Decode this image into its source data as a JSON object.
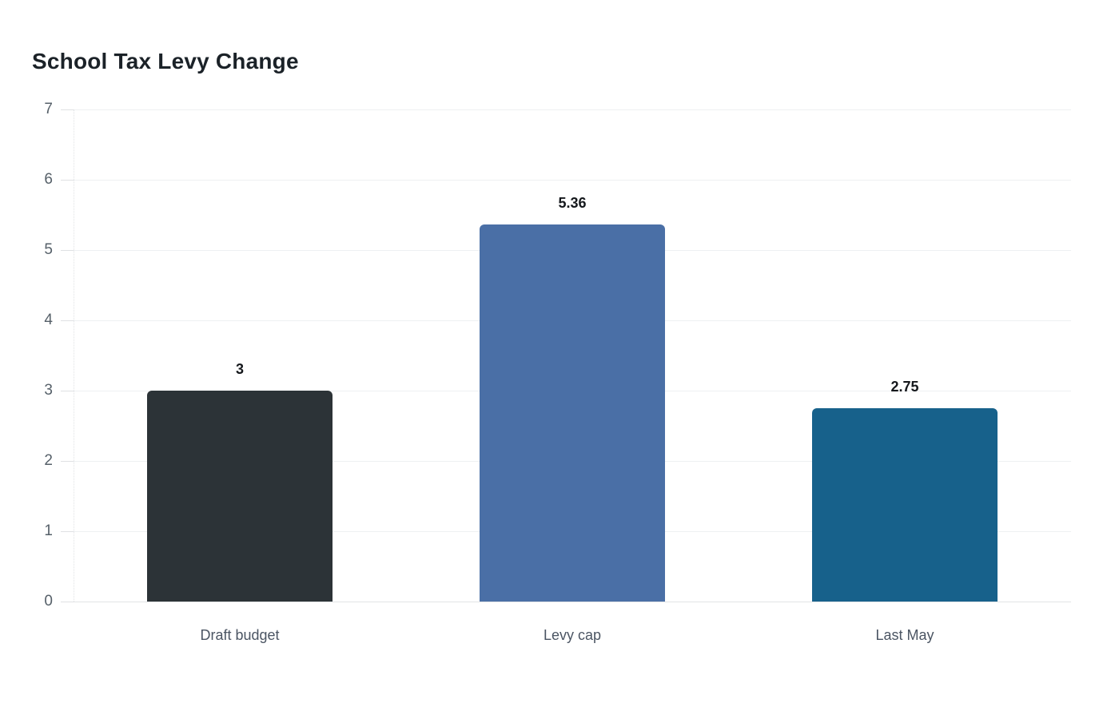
{
  "chart_data": {
    "type": "bar",
    "title": "School Tax Levy Change",
    "categories": [
      "Draft budget",
      "Levy cap",
      "Last May"
    ],
    "values": [
      3,
      5.36,
      2.75
    ],
    "value_labels": [
      "3",
      "5.36",
      "2.75"
    ],
    "bar_colors": [
      "#2c3337",
      "#4a6fa6",
      "#17618b"
    ],
    "xlabel": "",
    "ylabel": "",
    "ylim": [
      0,
      7
    ],
    "yticks": [
      0,
      1,
      2,
      3,
      4,
      5,
      6,
      7
    ],
    "grid": true,
    "legend": false,
    "background": "#ffffff"
  },
  "colors": {
    "grid": "#eef0f2",
    "baseline": "#e2e4e6",
    "tick": "#dfe1e3",
    "axis_text": "#566069",
    "category_text": "#4b5563",
    "value_text": "#15181c",
    "title_text": "#1b2228"
  }
}
